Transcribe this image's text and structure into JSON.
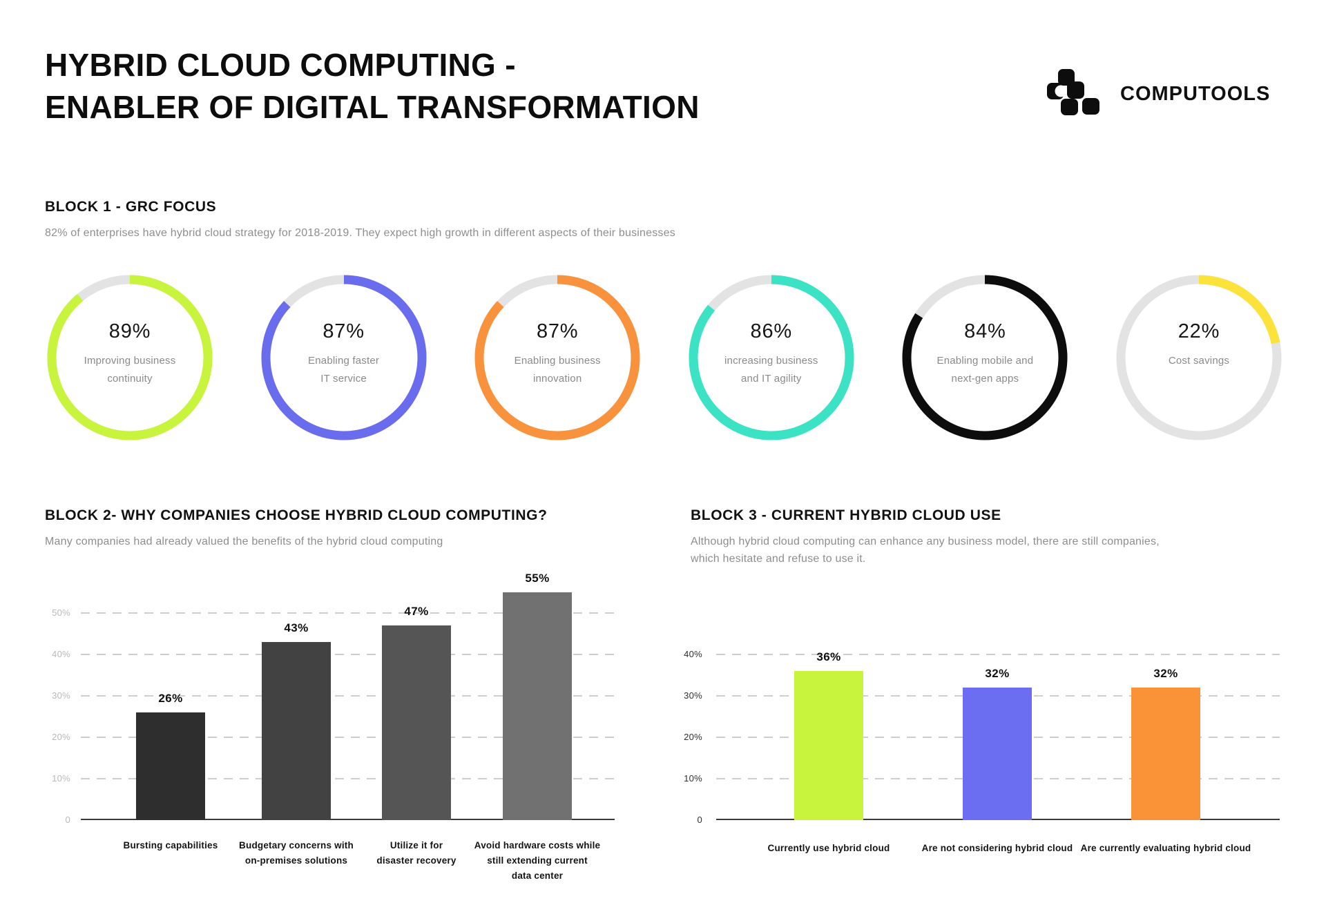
{
  "header": {
    "title_line1": "HYBRID CLOUD COMPUTING -",
    "title_line2": "ENABLER OF DIGITAL TRANSFORMATION",
    "brand": "COMPUTOOLS"
  },
  "block1": {
    "heading": "BLOCK 1 - GRC FOCUS",
    "subtitle": "82% of enterprises have hybrid cloud strategy for 2018-2019. They expect high growth in different aspects of their businesses"
  },
  "block2": {
    "heading": "BLOCK 2- WHY COMPANIES CHOOSE HYBRID CLOUD COMPUTING?",
    "subtitle": "Many companies had already valued the benefits of the hybrid cloud computing"
  },
  "block3": {
    "heading": "BLOCK 3 - CURRENT HYBRID CLOUD USE",
    "subtitle": "Although hybrid cloud computing can enhance any business model, there are still companies, which hesitate and refuse to use it."
  },
  "colors": {
    "lime": "#c8f43e",
    "blue": "#6a6cee",
    "orange": "#f8923c",
    "teal": "#3be3c4",
    "black": "#0d0d0d",
    "yellow": "#fbe33b",
    "track_gray": "#e3e3e3",
    "text_gray": "#8e8e8e"
  },
  "chart_data": [
    {
      "type": "pie",
      "subtype": "donut-set",
      "title": "BLOCK 1 - GRC FOCUS",
      "values": [
        89,
        87,
        87,
        86,
        84,
        22
      ],
      "value_labels": [
        "89%",
        "87%",
        "87%",
        "86%",
        "84%",
        "22%"
      ],
      "labels": [
        [
          "Improving business",
          "continuity"
        ],
        [
          "Enabling faster",
          "IT service"
        ],
        [
          "Enabling business",
          "innovation"
        ],
        [
          "increasing business",
          "and IT agility"
        ],
        [
          "Enabling mobile and",
          "next-gen apps"
        ],
        [
          "Cost savings"
        ]
      ],
      "colors": [
        "#c8f43e",
        "#6a6cee",
        "#f8923c",
        "#3be3c4",
        "#0d0d0d",
        "#fbe33b"
      ],
      "track_color": "#e3e3e3",
      "start_angle_deg": 0,
      "direction": "clockwise"
    },
    {
      "type": "bar",
      "title": "BLOCK 2- WHY COMPANIES CHOOSE HYBRID CLOUD COMPUTING?",
      "categories": [
        [
          "Bursting capabilities"
        ],
        [
          "Budgetary concerns with",
          "on-premises solutions"
        ],
        [
          "Utilize it for",
          "disaster recovery"
        ],
        [
          "Avoid hardware costs while",
          "still extending current",
          "data center"
        ]
      ],
      "values": [
        26,
        43,
        47,
        55
      ],
      "value_labels": [
        "26%",
        "43%",
        "47%",
        "55%"
      ],
      "bar_colors": [
        "#2e2e2e",
        "#424242",
        "#555555",
        "#717171"
      ],
      "yticks": [
        "0",
        "10%",
        "20%",
        "30%",
        "40%",
        "50%"
      ],
      "ylim": [
        0,
        50
      ],
      "grid": "dashed horizontal",
      "xlabel": "",
      "ylabel": ""
    },
    {
      "type": "bar",
      "title": "BLOCK 3 - CURRENT HYBRID CLOUD USE",
      "categories": [
        [
          "Currently use hybrid cloud"
        ],
        [
          "Are not considering hybrid cloud"
        ],
        [
          "Are currently evaluating hybrid cloud"
        ]
      ],
      "values": [
        36,
        32,
        32
      ],
      "value_labels": [
        "36%",
        "32%",
        "32%"
      ],
      "bar_colors": [
        "#c8f43e",
        "#6b6ef0",
        "#fa9238"
      ],
      "yticks": [
        "0",
        "10%",
        "20%",
        "30%",
        "40%"
      ],
      "ylim": [
        0,
        40
      ],
      "grid": "dashed horizontal",
      "xlabel": "",
      "ylabel": ""
    }
  ]
}
